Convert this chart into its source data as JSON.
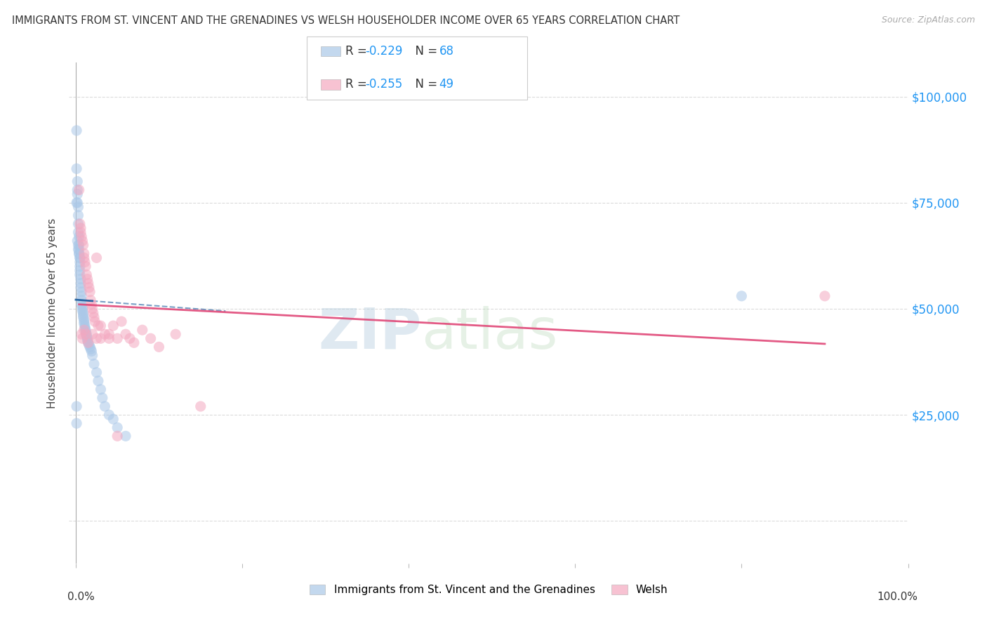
{
  "title": "IMMIGRANTS FROM ST. VINCENT AND THE GRENADINES VS WELSH HOUSEHOLDER INCOME OVER 65 YEARS CORRELATION CHART",
  "source": "Source: ZipAtlas.com",
  "ylabel": "Householder Income Over 65 years",
  "watermark_zip": "ZIP",
  "watermark_atlas": "atlas",
  "legend_label1": "Immigrants from St. Vincent and the Grenadines",
  "legend_label2": "Welsh",
  "R1": "-0.229",
  "N1": "68",
  "R2": "-0.255",
  "N2": "49",
  "color_blue": "#aac8e8",
  "color_pink": "#f4a8c0",
  "color_blue_line": "#2060a0",
  "color_pink_line": "#e04878",
  "color_blue_text": "#2196F3",
  "color_grid": "#d8d8d8",
  "yticks": [
    0,
    25000,
    50000,
    75000,
    100000
  ],
  "blue_x": [
    0.001,
    0.001,
    0.002,
    0.002,
    0.002,
    0.002,
    0.003,
    0.003,
    0.003,
    0.003,
    0.004,
    0.004,
    0.004,
    0.004,
    0.005,
    0.005,
    0.005,
    0.005,
    0.005,
    0.006,
    0.006,
    0.006,
    0.007,
    0.007,
    0.007,
    0.007,
    0.008,
    0.008,
    0.008,
    0.009,
    0.009,
    0.009,
    0.01,
    0.01,
    0.01,
    0.011,
    0.011,
    0.012,
    0.012,
    0.013,
    0.013,
    0.014,
    0.014,
    0.015,
    0.016,
    0.017,
    0.018,
    0.019,
    0.02,
    0.022,
    0.025,
    0.027,
    0.03,
    0.032,
    0.035,
    0.04,
    0.045,
    0.05,
    0.06,
    0.001,
    0.001,
    0.002,
    0.003,
    0.003,
    0.004,
    0.005,
    0.8,
    0.001
  ],
  "blue_y": [
    92000,
    83000,
    80000,
    78000,
    77000,
    75000,
    74000,
    72000,
    70000,
    68000,
    67000,
    65000,
    64000,
    63000,
    62000,
    61000,
    60000,
    59000,
    58000,
    57000,
    56000,
    55000,
    54000,
    53000,
    52000,
    51000,
    50500,
    50000,
    49500,
    49000,
    48500,
    48000,
    47500,
    47000,
    46500,
    46000,
    45500,
    45000,
    44500,
    44000,
    43500,
    43000,
    42500,
    42000,
    41500,
    41000,
    40500,
    40000,
    39000,
    37000,
    35000,
    33000,
    31000,
    29000,
    27000,
    25000,
    24000,
    22000,
    20000,
    27000,
    23000,
    66000,
    65000,
    64000,
    63000,
    62000,
    53000,
    75000
  ],
  "pink_x": [
    0.004,
    0.005,
    0.006,
    0.006,
    0.007,
    0.008,
    0.009,
    0.01,
    0.01,
    0.011,
    0.012,
    0.013,
    0.014,
    0.015,
    0.016,
    0.017,
    0.018,
    0.019,
    0.02,
    0.021,
    0.022,
    0.023,
    0.025,
    0.027,
    0.03,
    0.035,
    0.04,
    0.045,
    0.05,
    0.055,
    0.06,
    0.065,
    0.07,
    0.08,
    0.09,
    0.1,
    0.12,
    0.15,
    0.007,
    0.008,
    0.01,
    0.012,
    0.015,
    0.02,
    0.025,
    0.03,
    0.04,
    0.05,
    0.9
  ],
  "pink_y": [
    78000,
    70000,
    69000,
    68000,
    67000,
    66000,
    65000,
    63000,
    62000,
    61000,
    60000,
    58000,
    57000,
    56000,
    55000,
    54000,
    52000,
    51000,
    50000,
    49000,
    48000,
    47000,
    62000,
    46000,
    46000,
    44000,
    44000,
    46000,
    43000,
    47000,
    44000,
    43000,
    42000,
    45000,
    43000,
    41000,
    44000,
    27000,
    44000,
    43000,
    45000,
    44000,
    42000,
    44000,
    43000,
    43000,
    43000,
    20000,
    53000
  ]
}
